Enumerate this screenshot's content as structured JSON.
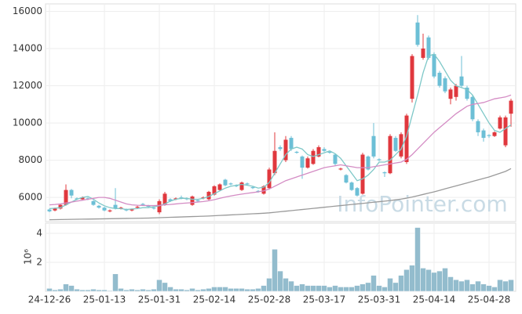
{
  "chart_data": [
    {
      "type": "candlestick",
      "watermark": "InfoPointer.com",
      "up_color": "#e0383e",
      "down_color": "#6cbfd6",
      "open": [
        5350,
        5300,
        5400,
        5600,
        6400,
        5950,
        5900,
        5950,
        5800,
        5550,
        5450,
        5250,
        5600,
        5400,
        5350,
        5300,
        5450,
        5650,
        5550,
        5450,
        5200,
        5600,
        5900,
        5900,
        6000,
        5950,
        5600,
        5850,
        5950,
        5900,
        6150,
        6400,
        6950,
        6750,
        6650,
        6400,
        6750,
        6550,
        6350,
        6200,
        6500,
        7300,
        8700,
        8000,
        9200,
        8450,
        8200,
        7600,
        7800,
        8200,
        8600,
        8450,
        8300,
        7500,
        7200,
        6800,
        6500,
        6200,
        8200,
        9300,
        8050,
        7350,
        7300,
        9200,
        8200,
        7900,
        11300,
        15400,
        13500,
        14600,
        13700,
        12700,
        12400,
        11300,
        11400,
        12500,
        11900,
        11400,
        10100,
        9600,
        9350,
        9300,
        9700,
        8800,
        10500
      ],
      "high": [
        5400,
        5450,
        5650,
        6700,
        6450,
        6000,
        6050,
        6000,
        5850,
        5600,
        5500,
        5350,
        6500,
        5500,
        5400,
        5400,
        5550,
        5700,
        5600,
        5500,
        5900,
        6300,
        5950,
        6000,
        6100,
        6000,
        6100,
        5900,
        6050,
        6350,
        6650,
        6750,
        7000,
        6800,
        6700,
        6850,
        6800,
        6600,
        6400,
        6650,
        7600,
        9500,
        8800,
        9300,
        9300,
        8500,
        8250,
        8200,
        8600,
        8800,
        8700,
        8500,
        8350,
        7600,
        7250,
        6850,
        6550,
        8400,
        8250,
        10000,
        8100,
        7400,
        9400,
        9300,
        9500,
        10500,
        13700,
        15800,
        14800,
        14700,
        13800,
        12800,
        12500,
        11900,
        12100,
        13600,
        12000,
        11500,
        10200,
        9700,
        9400,
        9550,
        10400,
        10400,
        11300
      ],
      "low": [
        5200,
        5250,
        5350,
        5550,
        5950,
        5850,
        5850,
        5850,
        5550,
        5400,
        5250,
        5200,
        5350,
        5350,
        5250,
        5250,
        5400,
        5550,
        5450,
        5350,
        5100,
        5550,
        5750,
        5850,
        5900,
        5850,
        5550,
        5750,
        5900,
        5850,
        6100,
        6350,
        6600,
        6650,
        6550,
        6350,
        6650,
        6450,
        6250,
        6150,
        6450,
        7200,
        8500,
        7900,
        8500,
        8350,
        7000,
        7550,
        7750,
        8150,
        8450,
        8350,
        7700,
        7450,
        6750,
        6350,
        6050,
        6150,
        7450,
        8100,
        7950,
        7100,
        7250,
        8450,
        8100,
        7800,
        11100,
        14100,
        13400,
        13400,
        12400,
        11900,
        11600,
        11000,
        11200,
        11900,
        11200,
        10100,
        9300,
        9000,
        9200,
        9250,
        9650,
        8700,
        9800
      ],
      "close": [
        5250,
        5400,
        5600,
        6400,
        6100,
        5900,
        6000,
        5900,
        5600,
        5450,
        5300,
        5300,
        5400,
        5450,
        5300,
        5350,
        5500,
        5600,
        5500,
        5400,
        5800,
        6200,
        5800,
        5950,
        5950,
        5900,
        6050,
        5800,
        6000,
        6300,
        6600,
        6700,
        6650,
        6700,
        6600,
        6800,
        6700,
        6500,
        6300,
        6600,
        7500,
        8500,
        8600,
        9100,
        8600,
        8400,
        7600,
        8100,
        8500,
        8700,
        8500,
        8400,
        7800,
        7550,
        6800,
        6400,
        6100,
        8300,
        7500,
        8200,
        8000,
        7300,
        9300,
        8500,
        9400,
        10400,
        13600,
        14200,
        14000,
        13500,
        12500,
        12000,
        11700,
        11800,
        12000,
        12000,
        11300,
        10200,
        9500,
        9200,
        9300,
        9500,
        10300,
        10300,
        11200
      ],
      "series": [
        {
          "color": "#7ec8c8",
          "values": [
            5400,
            5420,
            5450,
            5600,
            5750,
            5900,
            6000,
            6050,
            5900,
            5700,
            5550,
            5450,
            5400,
            5400,
            5350,
            5380,
            5400,
            5450,
            5450,
            5500,
            5550,
            5650,
            5800,
            5900,
            5950,
            5950,
            5900,
            5900,
            5950,
            6050,
            6200,
            6350,
            6500,
            6600,
            6650,
            6700,
            6650,
            6600,
            6500,
            6550,
            6800,
            7300,
            7800,
            8300,
            8600,
            8700,
            8600,
            8300,
            8200,
            8300,
            8400,
            8500,
            8350,
            8100,
            7700,
            7300,
            6900,
            7000,
            7200,
            7500,
            7900,
            7900,
            8000,
            8300,
            8600,
            9300,
            10400,
            11500,
            12700,
            13600,
            13700,
            13300,
            12800,
            12300,
            12000,
            11900,
            11800,
            11500,
            11000,
            10500,
            10000,
            9600,
            9500,
            9700,
            9900
          ]
        },
        {
          "color": "#d48cc4",
          "values": [
            5600,
            5620,
            5650,
            5700,
            5750,
            5800,
            5850,
            5900,
            5950,
            6000,
            6000,
            5950,
            5850,
            5750,
            5650,
            5600,
            5580,
            5570,
            5560,
            5560,
            5570,
            5600,
            5620,
            5650,
            5680,
            5700,
            5720,
            5750,
            5780,
            5820,
            5880,
            5950,
            6020,
            6080,
            6130,
            6180,
            6220,
            6260,
            6300,
            6350,
            6450,
            6600,
            6750,
            6900,
            7000,
            7100,
            7200,
            7300,
            7400,
            7500,
            7600,
            7650,
            7700,
            7750,
            7700,
            7650,
            7600,
            7600,
            7600,
            7650,
            7700,
            7750,
            7800,
            7850,
            7900,
            8050,
            8300,
            8600,
            8900,
            9200,
            9500,
            9750,
            10000,
            10250,
            10500,
            10700,
            10900,
            11000,
            11050,
            11100,
            11200,
            11300,
            11350,
            11400,
            11500
          ]
        },
        {
          "color": "#9a9a9a",
          "values": [
            4800,
            4805,
            4810,
            4815,
            4820,
            4825,
            4830,
            4835,
            4840,
            4845,
            4850,
            4855,
            4860,
            4865,
            4870,
            4875,
            4880,
            4885,
            4890,
            4900,
            4910,
            4920,
            4930,
            4940,
            4950,
            4960,
            4970,
            4980,
            4990,
            5000,
            5015,
            5030,
            5045,
            5060,
            5075,
            5090,
            5105,
            5120,
            5135,
            5150,
            5170,
            5200,
            5230,
            5260,
            5290,
            5320,
            5350,
            5380,
            5410,
            5440,
            5470,
            5500,
            5530,
            5560,
            5590,
            5620,
            5650,
            5680,
            5710,
            5740,
            5770,
            5800,
            5830,
            5870,
            5910,
            5960,
            6020,
            6090,
            6160,
            6230,
            6300,
            6380,
            6460,
            6540,
            6620,
            6700,
            6780,
            6860,
            6940,
            7020,
            7100,
            7200,
            7300,
            7400,
            7550
          ]
        }
      ],
      "ylim": [
        4700,
        16400
      ],
      "yticks": [
        6000,
        8000,
        10000,
        12000,
        14000,
        16000
      ],
      "grid": true
    },
    {
      "type": "bar",
      "ylabel": "10⁶",
      "color": "#93bccd",
      "categories": [
        "24-12-26",
        null,
        null,
        null,
        null,
        null,
        null,
        null,
        null,
        null,
        "25-01-13",
        null,
        null,
        null,
        null,
        null,
        null,
        null,
        null,
        null,
        "25-01-31",
        null,
        null,
        null,
        null,
        null,
        null,
        null,
        null,
        null,
        "25-02-14",
        null,
        null,
        null,
        null,
        null,
        null,
        null,
        null,
        null,
        "25-02-28",
        null,
        null,
        null,
        null,
        null,
        null,
        null,
        null,
        null,
        "25-03-17",
        null,
        null,
        null,
        null,
        null,
        null,
        null,
        null,
        null,
        "25-03-31",
        null,
        null,
        null,
        null,
        null,
        null,
        null,
        null,
        null,
        "25-04-14",
        null,
        null,
        null,
        null,
        null,
        null,
        null,
        null,
        null,
        "25-04-28",
        null,
        null,
        null,
        null
      ],
      "values": [
        0.2,
        0.1,
        0.15,
        0.5,
        0.4,
        0.15,
        0.1,
        0.1,
        0.15,
        0.1,
        0.1,
        0.05,
        1.2,
        0.2,
        0.1,
        0.15,
        0.1,
        0.15,
        0.1,
        0.15,
        0.8,
        0.6,
        0.3,
        0.15,
        0.15,
        0.1,
        0.2,
        0.1,
        0.15,
        0.2,
        0.3,
        0.3,
        0.3,
        0.2,
        0.2,
        0.2,
        0.15,
        0.15,
        0.2,
        0.4,
        0.9,
        2.9,
        1.4,
        0.9,
        0.7,
        0.4,
        0.5,
        0.4,
        0.4,
        0.4,
        0.4,
        0.3,
        0.4,
        0.3,
        0.3,
        0.3,
        0.4,
        0.5,
        0.6,
        1.1,
        0.4,
        0.3,
        0.9,
        0.6,
        1.1,
        1.5,
        1.8,
        4.4,
        1.6,
        1.5,
        1.3,
        1.4,
        1.6,
        1.0,
        0.8,
        0.7,
        0.8,
        0.5,
        0.7,
        0.5,
        0.4,
        0.3,
        0.8,
        0.7,
        0.8
      ],
      "ylim": [
        0,
        4.7
      ],
      "yticks": [
        2,
        4
      ],
      "grid": true
    }
  ]
}
